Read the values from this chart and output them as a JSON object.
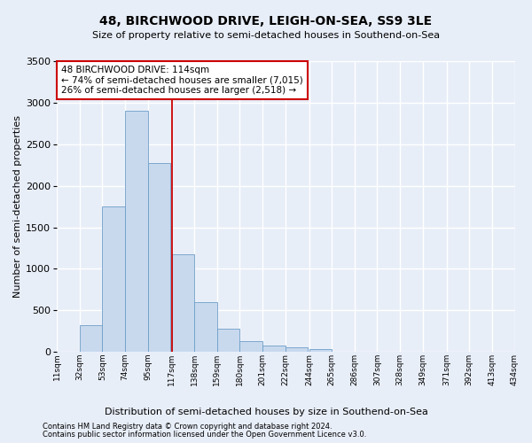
{
  "title": "48, BIRCHWOOD DRIVE, LEIGH-ON-SEA, SS9 3LE",
  "subtitle": "Size of property relative to semi-detached houses in Southend-on-Sea",
  "xlabel": "Distribution of semi-detached houses by size in Southend-on-Sea",
  "ylabel": "Number of semi-detached properties",
  "footnote1": "Contains HM Land Registry data © Crown copyright and database right 2024.",
  "footnote2": "Contains public sector information licensed under the Open Government Licence v3.0.",
  "annotation_title": "48 BIRCHWOOD DRIVE: 114sqm",
  "annotation_line1": "← 74% of semi-detached houses are smaller (7,015)",
  "annotation_line2": "26% of semi-detached houses are larger (2,518) →",
  "bar_color": "#c8d9ee",
  "bar_edge_color": "#6e9ec8",
  "vline_x": 117,
  "vline_color": "#cc0000",
  "bin_edges": [
    11,
    32,
    53,
    74,
    95,
    117,
    138,
    159,
    180,
    201,
    222,
    244,
    265,
    286,
    307,
    328,
    349,
    371,
    392,
    413,
    434
  ],
  "bin_labels": [
    "11sqm",
    "32sqm",
    "53sqm",
    "74sqm",
    "95sqm",
    "117sqm",
    "138sqm",
    "159sqm",
    "180sqm",
    "201sqm",
    "222sqm",
    "244sqm",
    "265sqm",
    "286sqm",
    "307sqm",
    "328sqm",
    "349sqm",
    "371sqm",
    "392sqm",
    "413sqm",
    "434sqm"
  ],
  "bar_heights": [
    5,
    320,
    1750,
    2900,
    2275,
    1175,
    600,
    285,
    130,
    75,
    60,
    30,
    0,
    0,
    0,
    0,
    0,
    0,
    0,
    0
  ],
  "ylim": [
    0,
    3500
  ],
  "yticks": [
    0,
    500,
    1000,
    1500,
    2000,
    2500,
    3000,
    3500
  ],
  "background_color": "#e8eef8",
  "grid_color": "#ffffff",
  "annotation_box_color": "#ffffff",
  "annotation_box_edge": "#cc0000",
  "fig_width": 6.0,
  "fig_height": 5.0,
  "dpi": 100
}
